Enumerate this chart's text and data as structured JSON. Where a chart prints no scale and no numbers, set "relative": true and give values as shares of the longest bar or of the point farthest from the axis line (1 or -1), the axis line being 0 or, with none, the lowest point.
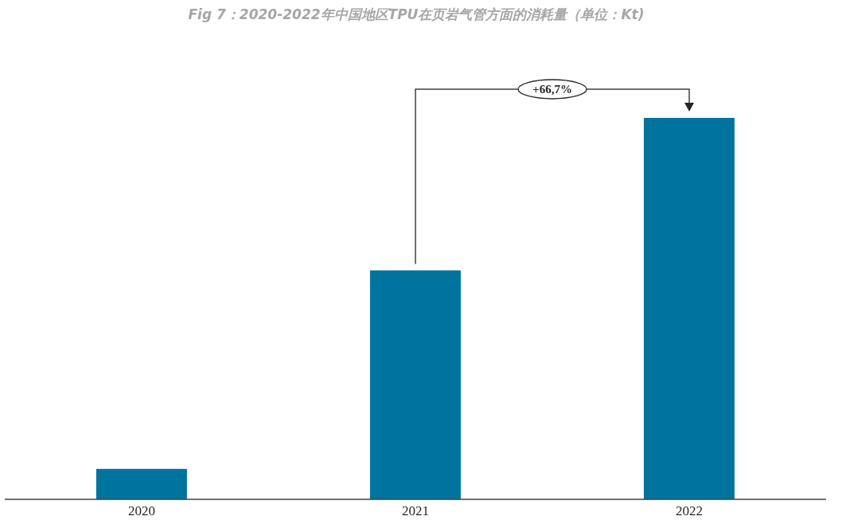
{
  "chart_data": {
    "type": "bar",
    "title": "Fig 7：2020-2022年中国地区TPU在页岩气管方面的消耗量（单位：Kt)",
    "categories": [
      "2020",
      "2021",
      "2022"
    ],
    "values": [
      0.08,
      0.6,
      1
    ],
    "color": "#00749f",
    "relative": true,
    "annotations": [
      "+66,7%"
    ]
  }
}
